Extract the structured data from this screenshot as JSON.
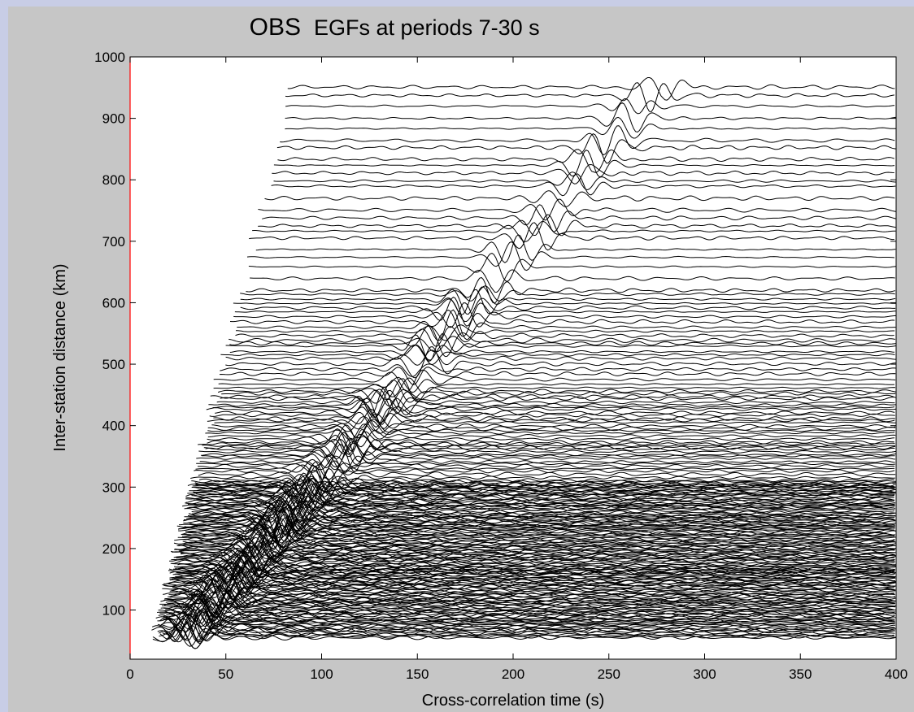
{
  "chart_data": {
    "type": "line",
    "title_main": "OBS",
    "title_sub": "EGFs at periods 7-30 s",
    "xlabel": "Cross-correlation time (s)",
    "ylabel": "Inter-station distance (km)",
    "xlim": [
      0,
      400
    ],
    "ylim": [
      20,
      1000
    ],
    "xticks": [
      0,
      50,
      100,
      150,
      200,
      250,
      300,
      350,
      400
    ],
    "yticks": [
      100,
      200,
      300,
      400,
      500,
      600,
      700,
      800,
      900,
      1000
    ],
    "grid": false,
    "trace_distance_range_km": [
      55,
      955
    ],
    "signal_arrival": {
      "description_velocity_km_per_s": 3.5,
      "near_offset": {
        "distance_km": 60,
        "time_s": 30
      },
      "far_offset": {
        "distance_km": 950,
        "time_s": 275
      }
    },
    "colors": {
      "figure_background": "#c6c6c6",
      "outer_border": "#c8cde6",
      "axes_background": "#ffffff",
      "trace": "#000000",
      "left_axis_line": "#ff0000"
    }
  }
}
